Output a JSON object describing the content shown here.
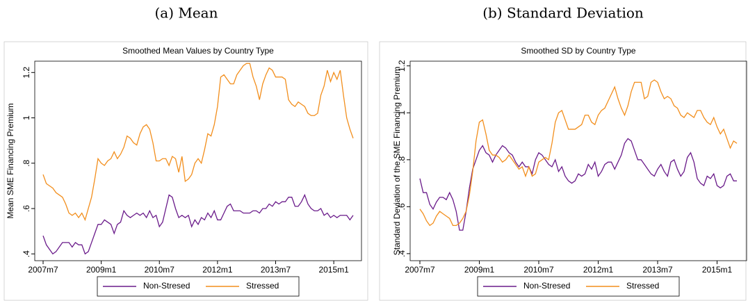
{
  "chart_data": [
    {
      "type": "line",
      "caption": "(a) Mean",
      "title": "Smoothed Mean Values by Country Type",
      "y_label": "Mean SME Financing Premium",
      "x": [
        "2007m7",
        "2007m8",
        "2007m9",
        "2007m10",
        "2007m11",
        "2007m12",
        "2008m1",
        "2008m2",
        "2008m3",
        "2008m4",
        "2008m5",
        "2008m6",
        "2008m7",
        "2008m8",
        "2008m9",
        "2008m10",
        "2008m11",
        "2008m12",
        "2009m1",
        "2009m2",
        "2009m3",
        "2009m4",
        "2009m5",
        "2009m6",
        "2009m7",
        "2009m8",
        "2009m9",
        "2009m10",
        "2009m11",
        "2009m12",
        "2010m1",
        "2010m2",
        "2010m3",
        "2010m4",
        "2010m5",
        "2010m6",
        "2010m7",
        "2010m8",
        "2010m9",
        "2010m10",
        "2010m11",
        "2010m12",
        "2011m1",
        "2011m2",
        "2011m3",
        "2011m4",
        "2011m5",
        "2011m6",
        "2011m7",
        "2011m8",
        "2011m9",
        "2011m10",
        "2011m11",
        "2011m12",
        "2012m1",
        "2012m2",
        "2012m3",
        "2012m4",
        "2012m5",
        "2012m6",
        "2012m7",
        "2012m8",
        "2012m9",
        "2012m10",
        "2012m11",
        "2012m12",
        "2013m1",
        "2013m2",
        "2013m3",
        "2013m4",
        "2013m5",
        "2013m6",
        "2013m7",
        "2013m8",
        "2013m9",
        "2013m10",
        "2013m11",
        "2013m12",
        "2014m1",
        "2014m2",
        "2014m3",
        "2014m4",
        "2014m5",
        "2014m6",
        "2014m7",
        "2014m8",
        "2014m9",
        "2014m10",
        "2014m11",
        "2014m12",
        "2015m1",
        "2015m2",
        "2015m3",
        "2015m4",
        "2015m5",
        "2015m6",
        "2015m7"
      ],
      "xticks": [
        "2007m7",
        "2009m1",
        "2010m7",
        "2012m1",
        "2013m7",
        "2015m1"
      ],
      "ylim": [
        0.37,
        1.25
      ],
      "yticks": [
        {
          "value": 0.4,
          "label": ".4"
        },
        {
          "value": 0.6,
          "label": ".6"
        },
        {
          "value": 0.8,
          "label": ".8"
        },
        1,
        {
          "value": 1.2,
          "label": "1.2"
        }
      ],
      "legend_position": "bottom",
      "series": [
        {
          "name": "Non-Stresed",
          "color": "#6a1b8a",
          "values": [
            0.48,
            0.44,
            0.42,
            0.4,
            0.41,
            0.43,
            0.45,
            0.45,
            0.45,
            0.43,
            0.45,
            0.44,
            0.44,
            0.4,
            0.41,
            0.45,
            0.49,
            0.53,
            0.53,
            0.55,
            0.54,
            0.53,
            0.49,
            0.53,
            0.54,
            0.59,
            0.57,
            0.56,
            0.57,
            0.58,
            0.57,
            0.58,
            0.56,
            0.59,
            0.56,
            0.57,
            0.52,
            0.54,
            0.6,
            0.66,
            0.65,
            0.6,
            0.56,
            0.57,
            0.56,
            0.57,
            0.52,
            0.55,
            0.53,
            0.56,
            0.55,
            0.58,
            0.56,
            0.59,
            0.55,
            0.55,
            0.58,
            0.61,
            0.62,
            0.59,
            0.59,
            0.59,
            0.58,
            0.58,
            0.58,
            0.59,
            0.59,
            0.58,
            0.6,
            0.6,
            0.62,
            0.61,
            0.63,
            0.62,
            0.63,
            0.63,
            0.65,
            0.65,
            0.61,
            0.61,
            0.63,
            0.66,
            0.62,
            0.6,
            0.59,
            0.59,
            0.6,
            0.57,
            0.58,
            0.56,
            0.57,
            0.56,
            0.57,
            0.57,
            0.57,
            0.55,
            0.57
          ]
        },
        {
          "name": "Stressed",
          "color": "#f28e1c",
          "values": [
            0.75,
            0.71,
            0.7,
            0.69,
            0.67,
            0.66,
            0.65,
            0.62,
            0.58,
            0.57,
            0.58,
            0.56,
            0.58,
            0.55,
            0.6,
            0.65,
            0.73,
            0.82,
            0.8,
            0.79,
            0.81,
            0.82,
            0.85,
            0.82,
            0.84,
            0.87,
            0.92,
            0.91,
            0.89,
            0.88,
            0.93,
            0.96,
            0.97,
            0.95,
            0.89,
            0.81,
            0.81,
            0.82,
            0.82,
            0.79,
            0.83,
            0.82,
            0.76,
            0.83,
            0.72,
            0.73,
            0.75,
            0.8,
            0.82,
            0.8,
            0.86,
            0.93,
            0.92,
            0.97,
            1.05,
            1.18,
            1.19,
            1.17,
            1.15,
            1.15,
            1.19,
            1.21,
            1.23,
            1.24,
            1.24,
            1.18,
            1.14,
            1.08,
            1.15,
            1.19,
            1.22,
            1.21,
            1.18,
            1.18,
            1.18,
            1.17,
            1.08,
            1.06,
            1.05,
            1.07,
            1.06,
            1.05,
            1.02,
            1.01,
            1.01,
            1.02,
            1.1,
            1.14,
            1.21,
            1.16,
            1.2,
            1.17,
            1.21,
            1.1,
            1.0,
            0.95,
            0.91
          ]
        }
      ]
    },
    {
      "type": "line",
      "caption": "(b) Standard Deviation",
      "title": "Smoothed SD by Country Type",
      "y_label": "Standard Deviation of the SME Financing Premium",
      "x": [
        "2007m7",
        "2007m8",
        "2007m9",
        "2007m10",
        "2007m11",
        "2007m12",
        "2008m1",
        "2008m2",
        "2008m3",
        "2008m4",
        "2008m5",
        "2008m6",
        "2008m7",
        "2008m8",
        "2008m9",
        "2008m10",
        "2008m11",
        "2008m12",
        "2009m1",
        "2009m2",
        "2009m3",
        "2009m4",
        "2009m5",
        "2009m6",
        "2009m7",
        "2009m8",
        "2009m9",
        "2009m10",
        "2009m11",
        "2009m12",
        "2010m1",
        "2010m2",
        "2010m3",
        "2010m4",
        "2010m5",
        "2010m6",
        "2010m7",
        "2010m8",
        "2010m9",
        "2010m10",
        "2010m11",
        "2010m12",
        "2011m1",
        "2011m2",
        "2011m3",
        "2011m4",
        "2011m5",
        "2011m6",
        "2011m7",
        "2011m8",
        "2011m9",
        "2011m10",
        "2011m11",
        "2011m12",
        "2012m1",
        "2012m2",
        "2012m3",
        "2012m4",
        "2012m5",
        "2012m6",
        "2012m7",
        "2012m8",
        "2012m9",
        "2012m10",
        "2012m11",
        "2012m12",
        "2013m1",
        "2013m2",
        "2013m3",
        "2013m4",
        "2013m5",
        "2013m6",
        "2013m7",
        "2013m8",
        "2013m9",
        "2013m10",
        "2013m11",
        "2013m12",
        "2014m1",
        "2014m2",
        "2014m3",
        "2014m4",
        "2014m5",
        "2014m6",
        "2014m7",
        "2014m8",
        "2014m9",
        "2014m10",
        "2014m11",
        "2014m12",
        "2015m1",
        "2015m2",
        "2015m3",
        "2015m4",
        "2015m5",
        "2015m6",
        "2015m7"
      ],
      "xticks": [
        "2007m7",
        "2009m1",
        "2010m7",
        "2012m1",
        "2013m7",
        "2015m1"
      ],
      "ylim": [
        0.37,
        1.22
      ],
      "yticks": [
        {
          "value": 0.4,
          "label": ".4"
        },
        {
          "value": 0.6,
          "label": ".6"
        },
        {
          "value": 0.8,
          "label": ".8"
        },
        1,
        {
          "value": 1.2,
          "label": "1.2"
        }
      ],
      "legend_position": "bottom",
      "series": [
        {
          "name": "Non-Stresed",
          "color": "#6a1b8a",
          "values": [
            0.72,
            0.66,
            0.66,
            0.61,
            0.59,
            0.62,
            0.64,
            0.64,
            0.63,
            0.66,
            0.63,
            0.58,
            0.5,
            0.5,
            0.58,
            0.68,
            0.76,
            0.8,
            0.84,
            0.86,
            0.83,
            0.82,
            0.79,
            0.82,
            0.84,
            0.86,
            0.85,
            0.83,
            0.82,
            0.79,
            0.77,
            0.79,
            0.77,
            0.77,
            0.74,
            0.8,
            0.83,
            0.82,
            0.8,
            0.78,
            0.77,
            0.8,
            0.75,
            0.77,
            0.73,
            0.71,
            0.7,
            0.71,
            0.74,
            0.73,
            0.74,
            0.78,
            0.76,
            0.79,
            0.73,
            0.75,
            0.78,
            0.79,
            0.79,
            0.76,
            0.79,
            0.82,
            0.87,
            0.89,
            0.88,
            0.84,
            0.8,
            0.8,
            0.78,
            0.76,
            0.74,
            0.73,
            0.76,
            0.78,
            0.75,
            0.73,
            0.79,
            0.8,
            0.76,
            0.73,
            0.75,
            0.81,
            0.83,
            0.79,
            0.72,
            0.7,
            0.69,
            0.73,
            0.72,
            0.74,
            0.69,
            0.68,
            0.69,
            0.73,
            0.74,
            0.71,
            0.71
          ]
        },
        {
          "name": "Stressed",
          "color": "#f28e1c",
          "values": [
            0.59,
            0.57,
            0.54,
            0.52,
            0.53,
            0.56,
            0.58,
            0.57,
            0.56,
            0.55,
            0.52,
            0.52,
            0.53,
            0.55,
            0.58,
            0.65,
            0.75,
            0.88,
            0.96,
            0.97,
            0.91,
            0.84,
            0.82,
            0.82,
            0.81,
            0.79,
            0.8,
            0.82,
            0.8,
            0.78,
            0.76,
            0.77,
            0.73,
            0.77,
            0.73,
            0.74,
            0.79,
            0.8,
            0.81,
            0.8,
            0.87,
            0.96,
            1.0,
            1.01,
            0.97,
            0.93,
            0.93,
            0.93,
            0.94,
            0.95,
            0.99,
            0.99,
            0.96,
            0.95,
            0.99,
            1.01,
            1.02,
            1.05,
            1.08,
            1.11,
            1.06,
            1.02,
            0.99,
            1.03,
            1.09,
            1.13,
            1.13,
            1.13,
            1.06,
            1.07,
            1.13,
            1.14,
            1.13,
            1.09,
            1.06,
            1.07,
            1.06,
            1.03,
            1.02,
            0.99,
            0.98,
            1.0,
            0.99,
            0.98,
            1.01,
            1.01,
            0.98,
            0.96,
            0.95,
            0.98,
            0.94,
            0.91,
            0.93,
            0.89,
            0.85,
            0.88,
            0.87
          ]
        }
      ]
    }
  ]
}
